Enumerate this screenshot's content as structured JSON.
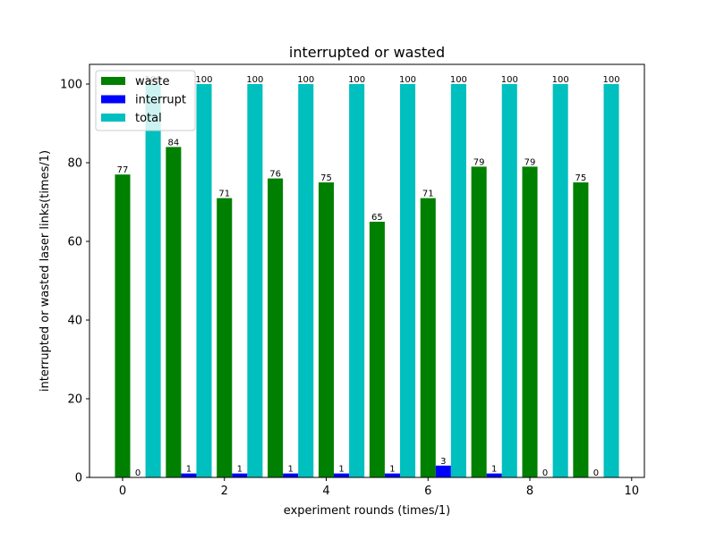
{
  "chart_data": {
    "type": "bar",
    "title": "interrupted or wasted",
    "xlabel": "experiment rounds (times/1)",
    "ylabel": "interrupted or wasted laser links(times/1)",
    "xlim": [
      -0.65,
      10.25
    ],
    "ylim": [
      0,
      105
    ],
    "xticks": [
      0,
      2,
      4,
      6,
      8,
      10
    ],
    "yticks": [
      0,
      20,
      40,
      60,
      80,
      100
    ],
    "grid": false,
    "legend_position": "top-left",
    "bar_width": 0.3,
    "x": [
      0,
      1,
      2,
      3,
      4,
      5,
      6,
      7,
      8,
      9
    ],
    "series": [
      {
        "name": "waste",
        "color": "#008000",
        "offset": 0.0,
        "values": [
          77,
          84,
          71,
          76,
          75,
          65,
          71,
          79,
          79,
          75
        ],
        "labels": [
          "77",
          "84",
          "71",
          "76",
          "75",
          "65",
          "71",
          "79",
          "79",
          "75"
        ]
      },
      {
        "name": "interrupt",
        "color": "#0000ff",
        "offset": 0.3,
        "values": [
          0,
          1,
          1,
          1,
          1,
          1,
          3,
          1,
          0,
          0
        ],
        "labels": [
          "0",
          "1",
          "1",
          "1",
          "1",
          "1",
          "3",
          "1",
          "0",
          "0"
        ]
      },
      {
        "name": "total",
        "color": "#00bfbf",
        "offset": 0.6,
        "values": [
          100,
          100,
          100,
          100,
          100,
          100,
          100,
          100,
          100,
          100
        ],
        "labels": [
          "100",
          "100",
          "100",
          "100",
          "100",
          "100",
          "100",
          "100",
          "100",
          "100"
        ]
      }
    ]
  }
}
